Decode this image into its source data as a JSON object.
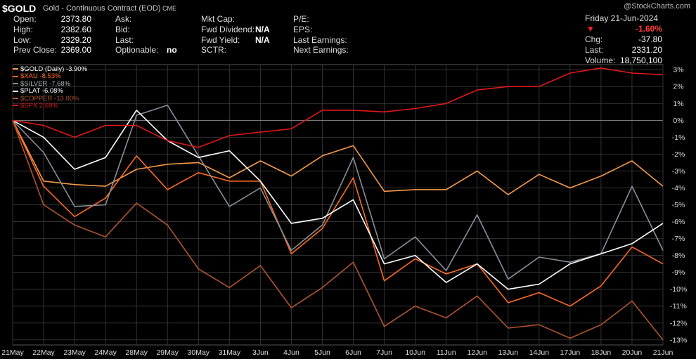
{
  "header": {
    "symbol": "$GOLD",
    "name": "Gold - Continuous Contract (EOD)",
    "exchange": "CME",
    "watermark": "@StockCharts.com",
    "date": "Friday  21-Jun-2024",
    "change_pct": "-1.60%",
    "col1": [
      {
        "label": "Open:",
        "value": "2373.80"
      },
      {
        "label": "High:",
        "value": "2382.60"
      },
      {
        "label": "Low:",
        "value": "2329.20"
      },
      {
        "label": "Prev Close:",
        "value": "2369.00"
      }
    ],
    "col2": [
      {
        "label": "Ask:",
        "value": ""
      },
      {
        "label": "Bid:",
        "value": ""
      },
      {
        "label": "Last:",
        "value": ""
      },
      {
        "label": "Optionable:",
        "value": "no"
      }
    ],
    "col3": [
      {
        "label": "Mkt Cap:",
        "value": ""
      },
      {
        "label": "Fwd Dividend:",
        "value": "N/A"
      },
      {
        "label": "Fwd Yield:",
        "value": "N/A"
      },
      {
        "label": "SCTR:",
        "value": ""
      }
    ],
    "col4": [
      {
        "label": "P/E:",
        "value": ""
      },
      {
        "label": "EPS:",
        "value": ""
      },
      {
        "label": "Last Earnings:",
        "value": ""
      },
      {
        "label": "Next Earnings:",
        "value": ""
      }
    ],
    "col5": [
      {
        "label": "Chg:",
        "value": "-37.80"
      },
      {
        "label": "Last:",
        "value": "2331.20"
      },
      {
        "label": "Volume:",
        "value": "18,750,100"
      }
    ]
  },
  "chart_data": {
    "type": "line",
    "categories": [
      "21May",
      "22May",
      "23May",
      "24May",
      "28May",
      "29May",
      "30May",
      "31May",
      "3Jun",
      "4Jun",
      "5Jun",
      "6Jun",
      "7Jun",
      "10Jun",
      "11Jun",
      "12Jun",
      "13Jun",
      "14Jun",
      "17Jun",
      "18Jun",
      "20Jun",
      "21Jun"
    ],
    "yticks": [
      3,
      2,
      1,
      0,
      -1,
      -2,
      -3,
      -4,
      -5,
      -6,
      -7,
      -8,
      -9,
      -10,
      -11,
      -12,
      -13
    ],
    "ytick_labels": [
      "3%",
      "2%",
      "1%",
      "0%",
      "-1%",
      "-2%",
      "-3%",
      "-4%",
      "-5%",
      "-6%",
      "-7%",
      "-8%",
      "-9%",
      "-10%",
      "-11%",
      "-12%",
      "-13%"
    ],
    "ylim": [
      -13.3,
      3.3
    ],
    "series": [
      {
        "name": "$GOLD (Daily) -3.90%",
        "color": "#f59a4a",
        "width": 1.6,
        "values": [
          0,
          -3.6,
          -3.8,
          -3.9,
          -2.9,
          -2.6,
          -2.5,
          -3.4,
          -2.4,
          -3.3,
          -2.1,
          -1.5,
          -4.2,
          -4.1,
          -4.1,
          -3.0,
          -4.4,
          -3.2,
          -4.0,
          -3.3,
          -2.4,
          -3.9
        ]
      },
      {
        "name": "$XAU -8.53%",
        "color": "#ff6a22",
        "width": 1.6,
        "values": [
          0,
          -3.9,
          -5.7,
          -4.6,
          -2.1,
          -4.1,
          -3.1,
          -3.6,
          -3.6,
          -7.9,
          -6.4,
          -3.4,
          -9.5,
          -8.2,
          -9.1,
          -8.5,
          -10.8,
          -10.2,
          -11.0,
          -9.8,
          -7.5,
          -8.5
        ]
      },
      {
        "name": "$SILVER -7.68%",
        "color": "#8a8f96",
        "width": 1.6,
        "values": [
          0,
          -1.9,
          -5.1,
          -5.0,
          0.3,
          0.9,
          -2.1,
          -5.1,
          -4.0,
          -7.7,
          -6.2,
          -2.2,
          -8.2,
          -6.9,
          -8.9,
          -5.6,
          -9.4,
          -8.1,
          -8.4,
          -7.9,
          -3.9,
          -7.7
        ]
      },
      {
        "name": "$PLAT -6.08%",
        "color": "#ffffff",
        "width": 1.6,
        "values": [
          0,
          -1.0,
          -2.9,
          -2.2,
          0.6,
          -1.2,
          -2.2,
          -1.8,
          -3.6,
          -6.1,
          -5.8,
          -4.7,
          -8.5,
          -8.0,
          -9.6,
          -8.5,
          -10.0,
          -9.7,
          -8.5,
          -7.9,
          -7.3,
          -6.1
        ]
      },
      {
        "name": "$COPPER -13.00%",
        "color": "#b0542e",
        "width": 1.6,
        "values": [
          0,
          -5.0,
          -6.2,
          -6.9,
          -4.9,
          -6.2,
          -8.8,
          -9.9,
          -8.6,
          -11.1,
          -9.9,
          -8.4,
          -12.2,
          -11.0,
          -11.7,
          -10.4,
          -12.3,
          -12.1,
          -12.9,
          -12.1,
          -10.7,
          -13.0
        ]
      },
      {
        "name": "$SPX 2.69%",
        "color": "#e01818",
        "width": 1.6,
        "values": [
          0,
          -0.3,
          -1.0,
          -0.3,
          -0.3,
          -1.2,
          -1.6,
          -0.9,
          -0.7,
          -0.5,
          0.6,
          0.6,
          0.5,
          0.7,
          1.0,
          1.8,
          2.0,
          2.0,
          2.8,
          3.1,
          2.8,
          2.7
        ]
      }
    ]
  }
}
